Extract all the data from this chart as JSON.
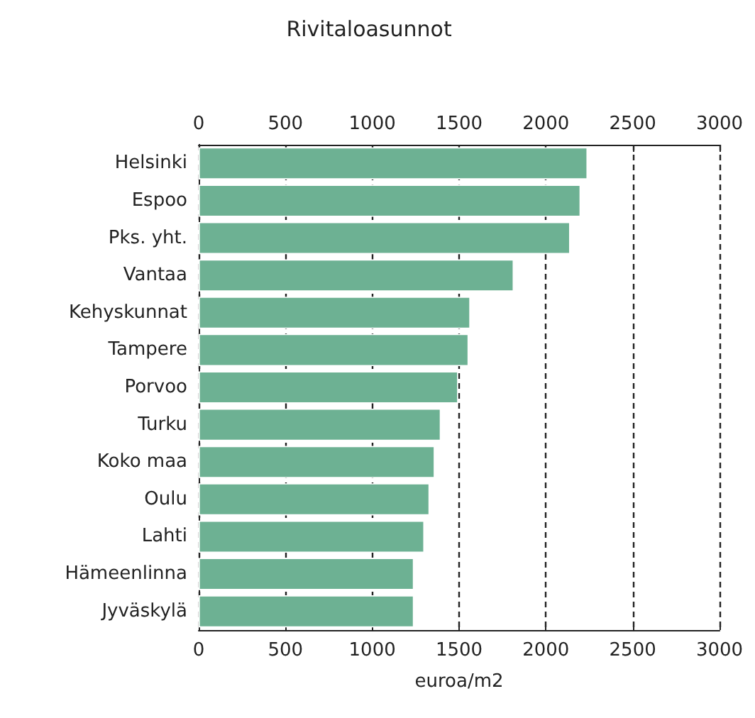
{
  "chart_data": {
    "type": "bar",
    "orientation": "horizontal",
    "title": "Rivitaloasunnot",
    "xlabel": "euroa/m2",
    "categories": [
      "Helsinki",
      "Espoo",
      "Pks. yht.",
      "Vantaa",
      "Kehyskunnat",
      "Tampere",
      "Porvoo",
      "Turku",
      "Koko maa",
      "Oulu",
      "Lahti",
      "Hämeenlinna",
      "Jyväskylä"
    ],
    "values": [
      2240,
      2200,
      2140,
      1815,
      1565,
      1555,
      1495,
      1395,
      1360,
      1330,
      1300,
      1240,
      1240
    ],
    "color": "#6db193",
    "xlim": [
      0,
      3000
    ],
    "xticks": [
      0,
      500,
      1000,
      1500,
      2000,
      2500,
      3000
    ],
    "x2lim": [
      0,
      3000
    ],
    "x2ticks": [
      0,
      500,
      1000,
      1500,
      2000,
      2500,
      3000
    ],
    "grid": "x"
  }
}
